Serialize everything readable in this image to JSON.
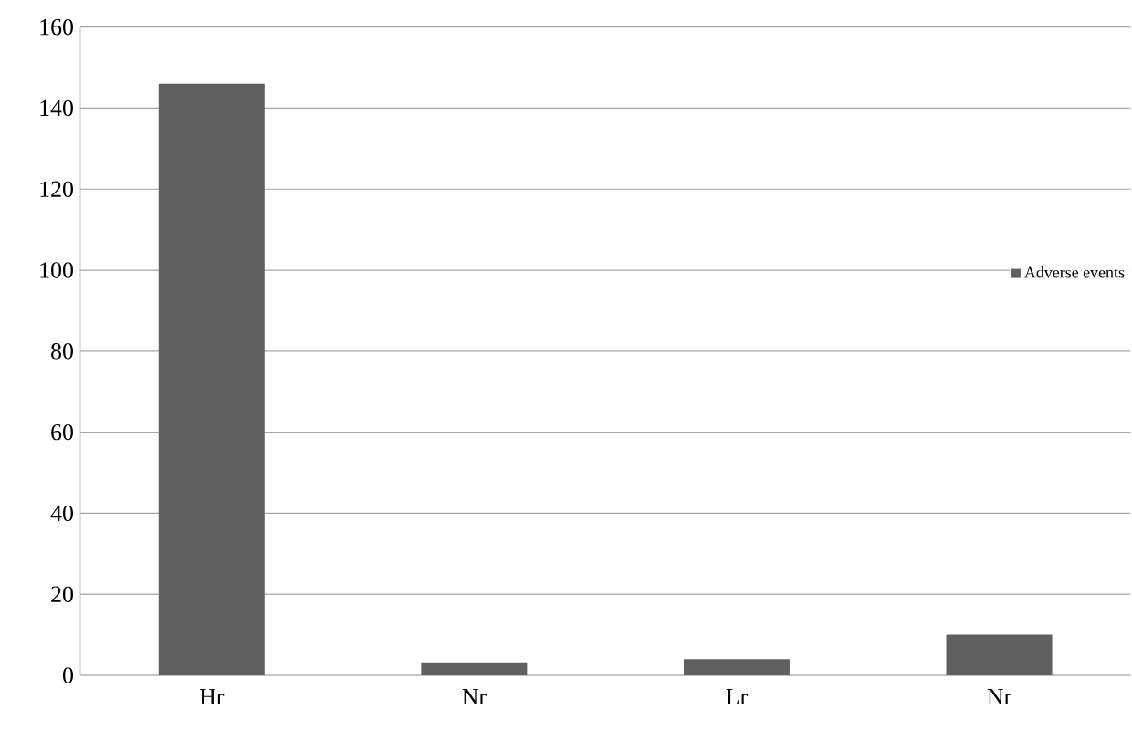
{
  "chart_data": {
    "type": "bar",
    "categories": [
      "Hr",
      "Nr",
      "Lr",
      "Nr"
    ],
    "series": [
      {
        "name": "Adverse events",
        "color": "#606060",
        "values": [
          146,
          3,
          4,
          10
        ]
      }
    ],
    "ylim": [
      0,
      160
    ],
    "yticks": [
      0,
      20,
      40,
      60,
      80,
      100,
      120,
      140,
      160
    ],
    "grid": "y",
    "legend": "right"
  }
}
